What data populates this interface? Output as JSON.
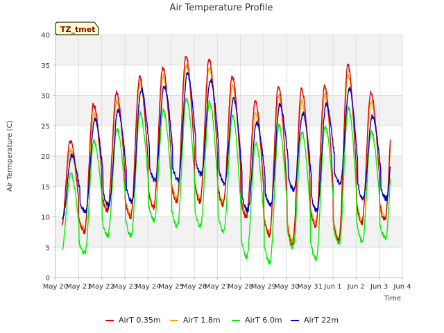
{
  "chart_data": {
    "type": "line",
    "title": "Air Temperature Profile",
    "xlabel": "Time",
    "ylabel": "Air Termperature (C)",
    "annotation": "TZ_tmet",
    "ylim": [
      0,
      40
    ],
    "xlim": [
      0,
      15
    ],
    "yticks": [
      0,
      5,
      10,
      15,
      20,
      25,
      30,
      35,
      40
    ],
    "xtick_labels": [
      "May 20",
      "May 21",
      "May 22",
      "May 23",
      "May 24",
      "May 25",
      "May 26",
      "May 27",
      "May 28",
      "May 29",
      "May 30",
      "May 31",
      "Jun 1",
      "Jun 2",
      "Jun 3",
      "Jun 4"
    ],
    "grid": true,
    "legend_position": "bottom",
    "series": [
      {
        "name": "AirT 0.35m",
        "color": "#dd0000",
        "lag": 0.0,
        "mins": [
          8.0,
          7.5,
          11.0,
          10.0,
          11.5,
          12.5,
          12.5,
          12.0,
          10.0,
          7.0,
          5.5,
          8.5,
          6.0,
          9.0,
          9.5,
          11.5
        ],
        "maxs": [
          22.5,
          28.5,
          30.5,
          33.0,
          34.5,
          36.5,
          36.0,
          33.0,
          29.0,
          31.5,
          31.0,
          31.5,
          35.0,
          30.5
        ]
      },
      {
        "name": "AirT 1.8m",
        "color": "#ffa500",
        "lag": 0.01,
        "mins": [
          8.5,
          8.0,
          11.5,
          10.5,
          12.0,
          13.0,
          13.0,
          12.5,
          10.5,
          7.5,
          6.0,
          9.0,
          6.5,
          9.5,
          10.0,
          12.0
        ],
        "maxs": [
          21.0,
          27.0,
          29.0,
          32.0,
          33.0,
          35.0,
          34.5,
          31.5,
          27.0,
          30.0,
          29.0,
          30.0,
          33.5,
          29.0
        ]
      },
      {
        "name": "AirT 6.0m",
        "color": "#00ee00",
        "lag": 0.02,
        "mins": [
          4.5,
          4.0,
          7.0,
          7.0,
          9.5,
          8.5,
          8.5,
          7.5,
          3.5,
          2.5,
          5.0,
          3.0,
          5.5,
          6.0,
          6.5,
          6.5
        ],
        "maxs": [
          17.0,
          22.5,
          24.5,
          27.0,
          27.5,
          29.5,
          29.0,
          26.5,
          22.0,
          25.0,
          24.0,
          25.0,
          28.0,
          24.0
        ]
      },
      {
        "name": "AirT 22m",
        "color": "#0000cc",
        "lag": 0.06,
        "mins": [
          10.0,
          11.0,
          12.0,
          12.5,
          16.0,
          16.0,
          17.0,
          15.5,
          11.0,
          12.0,
          14.5,
          11.0,
          15.5,
          13.0,
          13.0,
          11.5
        ],
        "maxs": [
          20.0,
          26.0,
          27.5,
          31.0,
          31.5,
          33.5,
          32.5,
          29.5,
          25.5,
          28.5,
          27.0,
          28.5,
          31.0,
          26.5
        ]
      }
    ]
  }
}
